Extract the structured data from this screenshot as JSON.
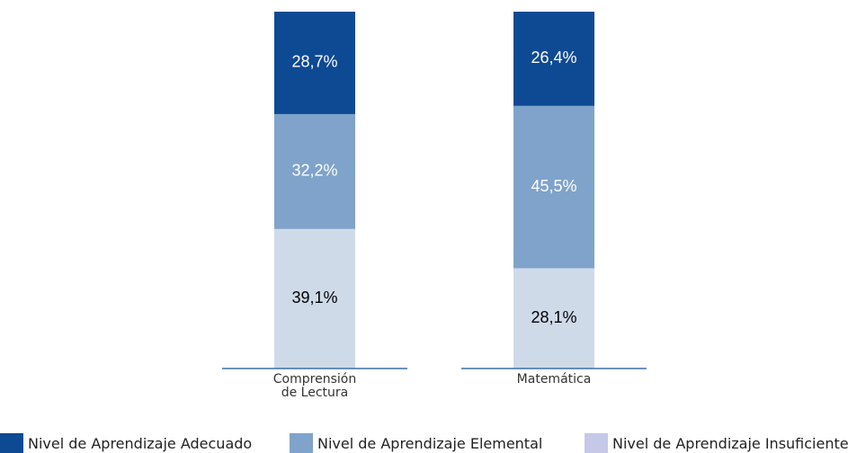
{
  "chart_data": {
    "type": "stacked_bar",
    "categories": [
      "Comprensión de Lectura",
      "Matemática"
    ],
    "ylim": [
      0,
      100
    ],
    "series": [
      {
        "name": "Nivel de Aprendizaje Adecuado",
        "color": "#0e4a94",
        "label_color": "#ffffff",
        "values": [
          28.7,
          26.4
        ],
        "value_labels": [
          "28,7%",
          "26,4%"
        ]
      },
      {
        "name": "Nivel de Aprendizaje Elemental",
        "color": "#7fa3cb",
        "label_color": "#ffffff",
        "values": [
          32.2,
          45.5
        ],
        "value_labels": [
          "32,2%",
          "45,5%"
        ]
      },
      {
        "name": "Nivel de Aprendizaje Insuficiente",
        "color": "#cfdae9",
        "legend_color": "#c5c8e6",
        "label_color": "#000000",
        "values": [
          39.1,
          28.1
        ],
        "value_labels": [
          "39,1%",
          "28,1%"
        ]
      }
    ]
  }
}
